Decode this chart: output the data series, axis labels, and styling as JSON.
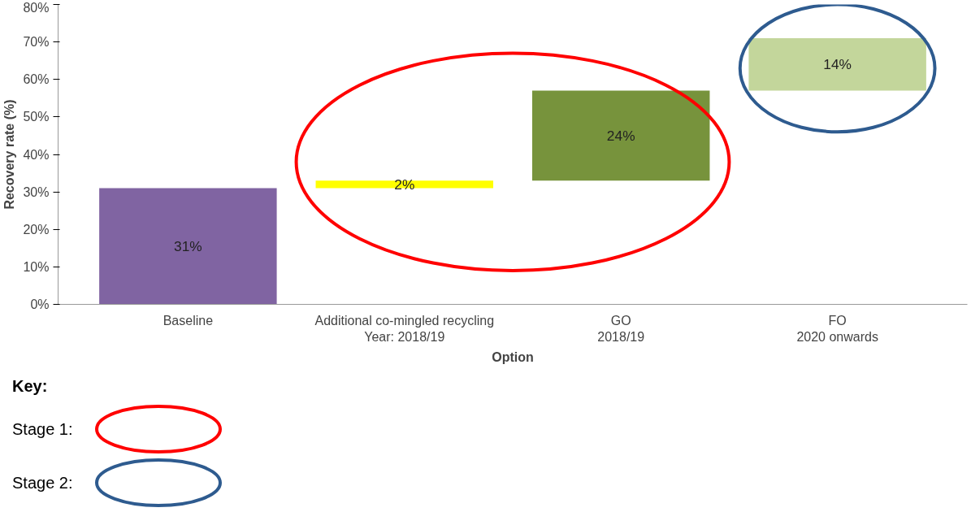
{
  "chart_data": {
    "type": "bar",
    "xlabel": "Option",
    "ylabel": "Recovery rate (%)",
    "categories": [
      "Baseline",
      "Additional co-mingled recycling\nYear: 2018/19",
      "GO\n2018/19",
      "FO\n2020 onwards"
    ],
    "values": [
      31,
      2,
      24,
      14
    ],
    "base": [
      0,
      31,
      33,
      57
    ],
    "colors": [
      "#8064a2",
      "#ffff00",
      "#77933c",
      "#c3d69b"
    ],
    "value_labels": [
      "31%",
      "2%",
      "24%",
      "14%"
    ],
    "ylim": [
      0,
      80
    ],
    "yticks": [
      {
        "value": 0,
        "label": "0%"
      },
      {
        "value": 10,
        "label": "10%"
      },
      {
        "value": 20,
        "label": "20%"
      },
      {
        "value": 30,
        "label": "30%"
      },
      {
        "value": 40,
        "label": "40%"
      },
      {
        "value": 50,
        "label": "50%"
      },
      {
        "value": 60,
        "label": "60%"
      },
      {
        "value": 70,
        "label": "70%"
      },
      {
        "value": 80,
        "label": "80%"
      }
    ],
    "annotations": [
      "Key:",
      "Stage 1:",
      "Stage 2:"
    ]
  }
}
